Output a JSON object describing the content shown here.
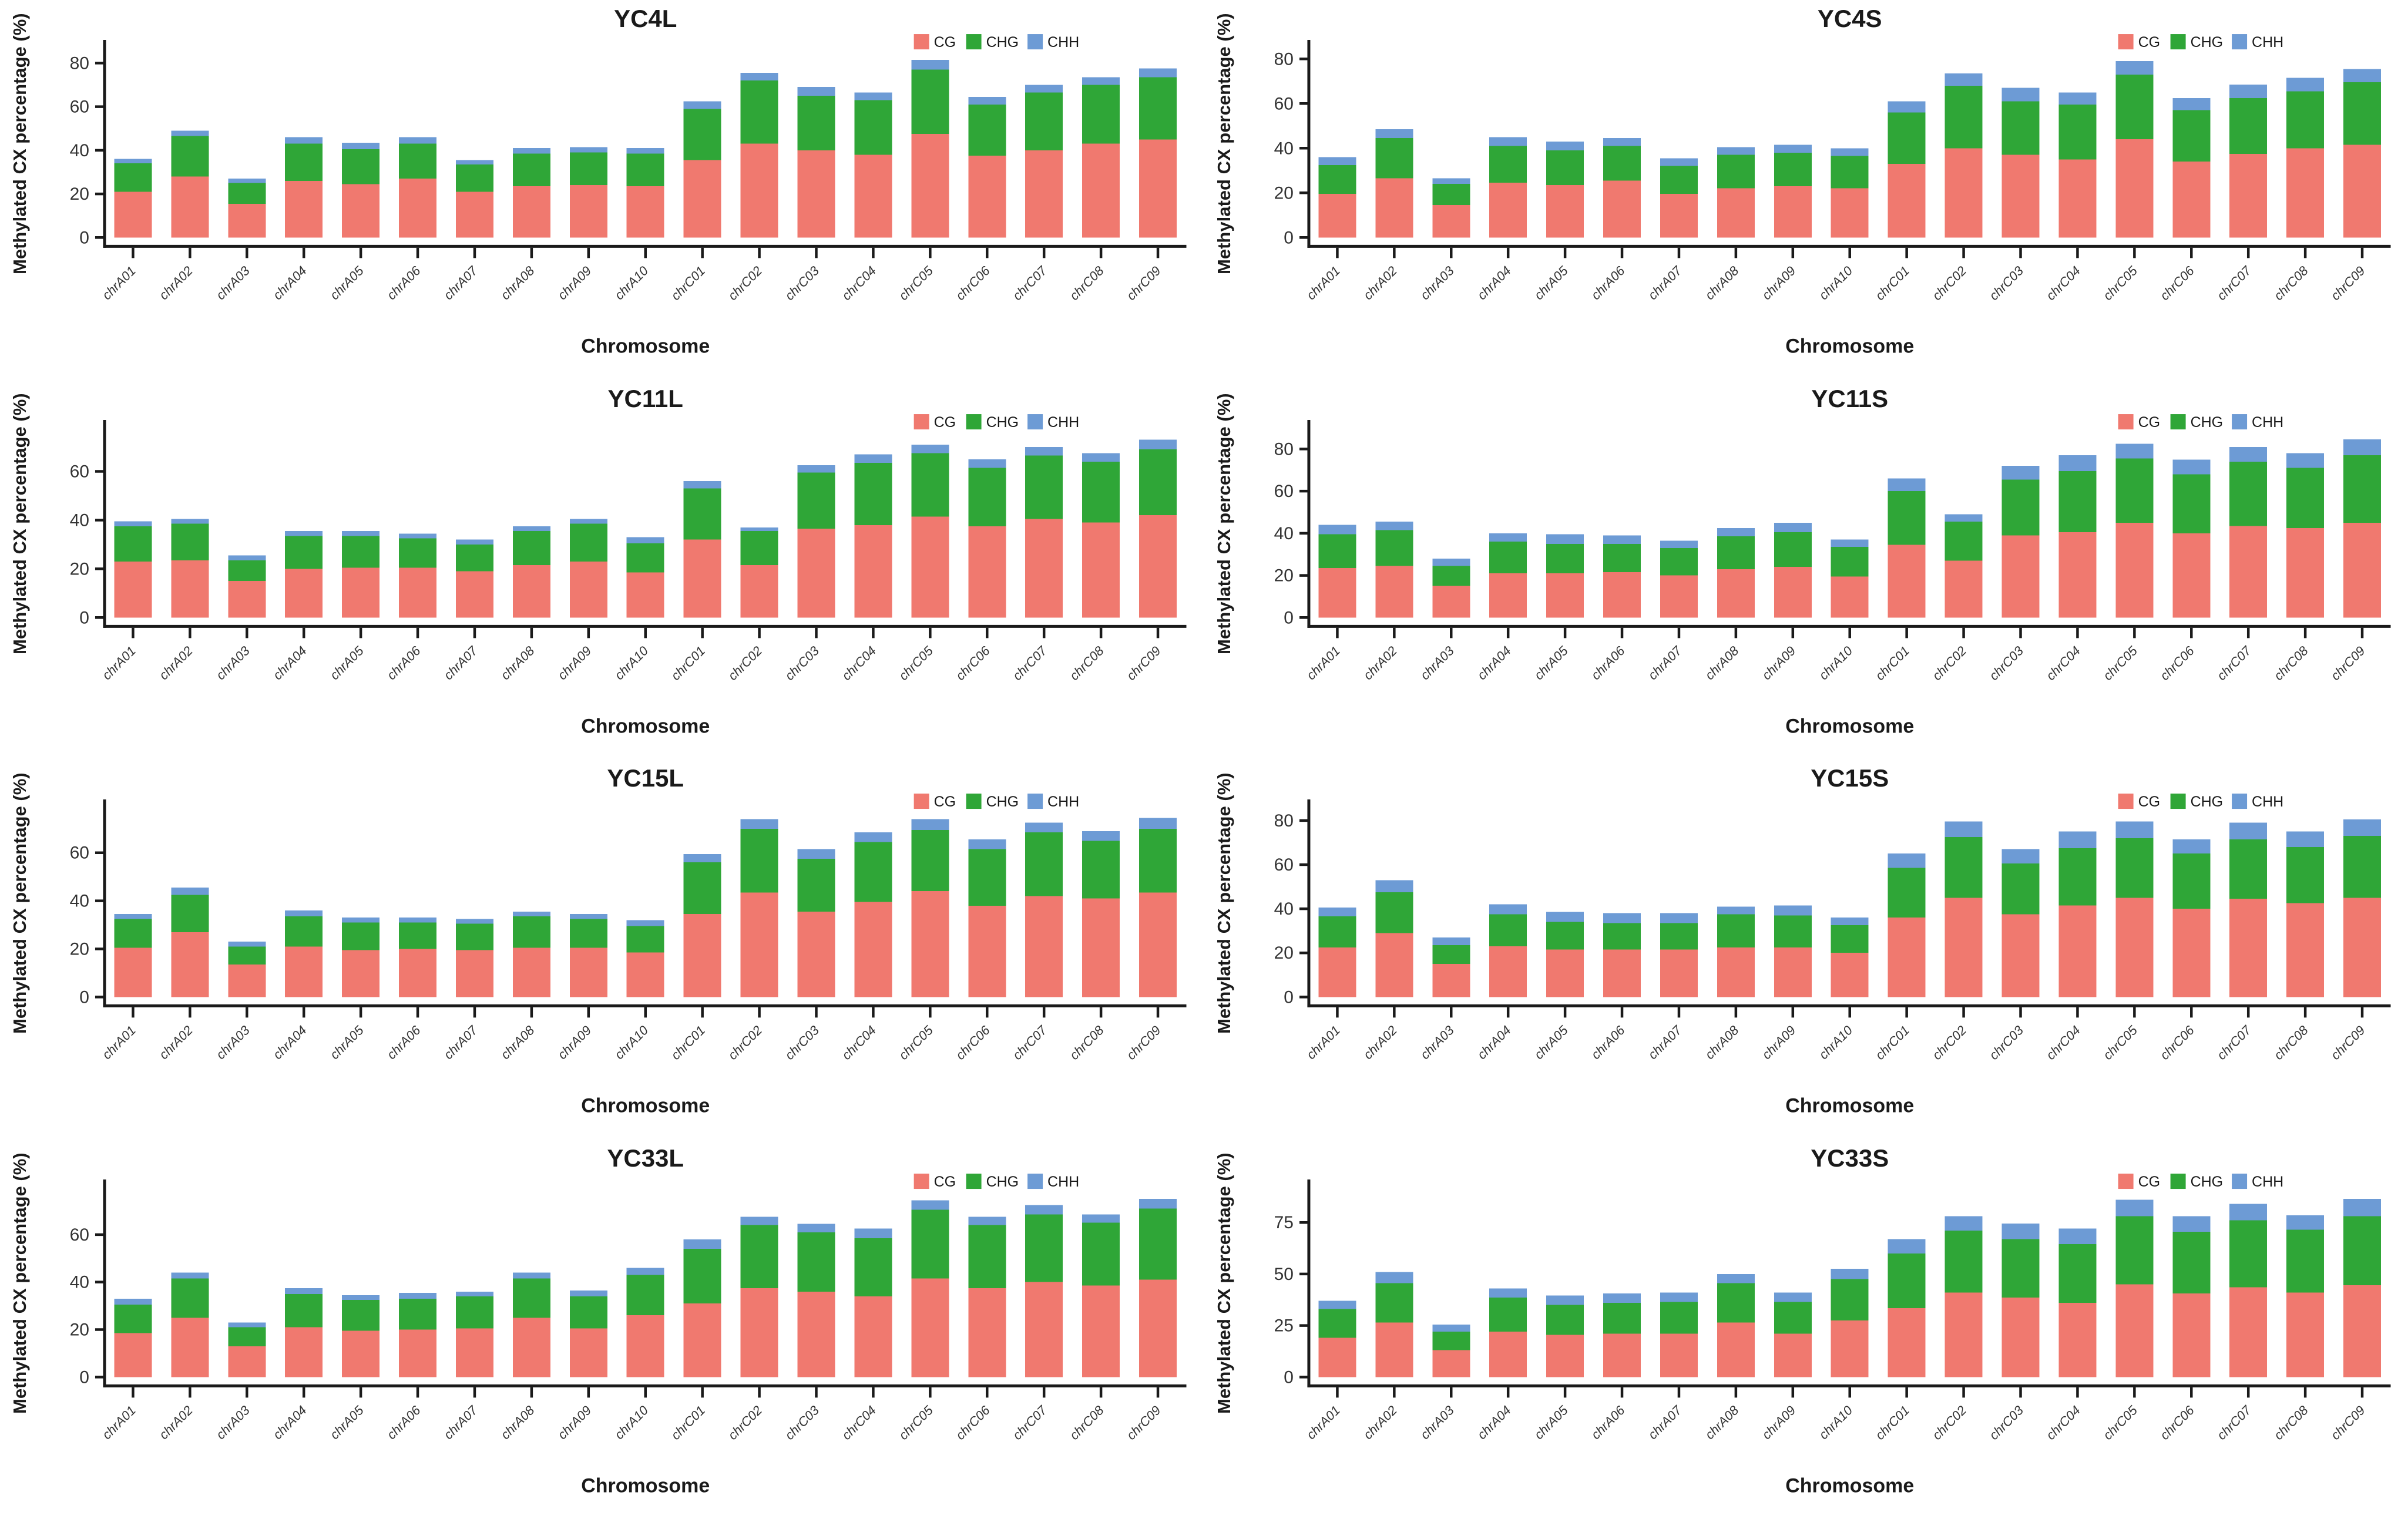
{
  "figure": {
    "background": "#FFFFFF",
    "text_color": "#1a1a1a",
    "tick_label_color": "#333333",
    "accent_colors": {
      "cg": "#F0796F",
      "chg": "#2FA637",
      "chh": "#6D9BD5"
    },
    "legend_labels": [
      "CG",
      "CHG",
      "CHH"
    ]
  },
  "chart_data": [
    {
      "type": "bar",
      "stacked": true,
      "title": "YC4L",
      "xlabel": "Chromosome",
      "ylabel": "Methylated CX percentage (%)",
      "legend_position": "top-right",
      "grid": false,
      "y_ticks": [
        0,
        20,
        40,
        60,
        80
      ],
      "ylim": [
        0,
        86
      ],
      "categories": [
        "chrA01",
        "chrA02",
        "chrA03",
        "chrA04",
        "chrA05",
        "chrA06",
        "chrA07",
        "chrA08",
        "chrA09",
        "chrA10",
        "chrC01",
        "chrC02",
        "chrC03",
        "chrC04",
        "chrC05",
        "chrC06",
        "chrC07",
        "chrC08",
        "chrC09"
      ],
      "series": [
        {
          "name": "CG",
          "color": "#F0796F",
          "values": [
            21,
            28,
            15.5,
            26,
            24.5,
            27,
            21,
            23.5,
            24,
            23.5,
            35.5,
            43,
            40,
            38,
            47.5,
            37.5,
            40,
            43,
            45
          ]
        },
        {
          "name": "CHG",
          "color": "#2FA637",
          "values": [
            13,
            18.5,
            9.5,
            17,
            16,
            16,
            12.5,
            15,
            15,
            15,
            23.5,
            29,
            25,
            25,
            29.5,
            23.5,
            26.5,
            27,
            28.5
          ]
        },
        {
          "name": "CHH",
          "color": "#6D9BD5",
          "values": [
            2,
            2.5,
            2,
            3,
            3,
            3,
            2,
            2.5,
            2.5,
            2.5,
            3.5,
            3.5,
            4,
            3.5,
            4.5,
            3.5,
            3.5,
            3.5,
            4
          ]
        }
      ]
    },
    {
      "type": "bar",
      "stacked": true,
      "title": "YC4S",
      "xlabel": "Chromosome",
      "ylabel": "Methylated CX percentage (%)",
      "legend_position": "top-right",
      "grid": false,
      "y_ticks": [
        0,
        20,
        40,
        60,
        80
      ],
      "ylim": [
        0,
        84
      ],
      "categories": [
        "chrA01",
        "chrA02",
        "chrA03",
        "chrA04",
        "chrA05",
        "chrA06",
        "chrA07",
        "chrA08",
        "chrA09",
        "chrA10",
        "chrC01",
        "chrC02",
        "chrC03",
        "chrC04",
        "chrC05",
        "chrC06",
        "chrC07",
        "chrC08",
        "chrC09"
      ],
      "series": [
        {
          "name": "CG",
          "color": "#F0796F",
          "values": [
            19.5,
            26.5,
            14.5,
            24.5,
            23.5,
            25.5,
            19.5,
            22,
            23,
            22,
            33,
            40,
            37,
            35,
            44,
            34,
            37.5,
            40,
            41.5
          ]
        },
        {
          "name": "CHG",
          "color": "#2FA637",
          "values": [
            13,
            18,
            9.5,
            16.5,
            15.5,
            15.5,
            12.5,
            15,
            15,
            14.5,
            23,
            28,
            24,
            24.5,
            29,
            23,
            25,
            25.5,
            28
          ]
        },
        {
          "name": "CHH",
          "color": "#6D9BD5",
          "values": [
            3.5,
            4,
            2.5,
            4,
            4,
            3.5,
            3.5,
            3.5,
            3.5,
            3.5,
            5,
            5.5,
            6,
            5.5,
            6,
            5.5,
            6,
            6,
            6
          ]
        }
      ]
    },
    {
      "type": "bar",
      "stacked": true,
      "title": "YC11L",
      "xlabel": "Chromosome",
      "ylabel": "Methylated CX percentage (%)",
      "legend_position": "top-right",
      "grid": false,
      "y_ticks": [
        0,
        20,
        40,
        60
      ],
      "ylim": [
        0,
        77
      ],
      "categories": [
        "chrA01",
        "chrA02",
        "chrA03",
        "chrA04",
        "chrA05",
        "chrA06",
        "chrA07",
        "chrA08",
        "chrA09",
        "chrA10",
        "chrC01",
        "chrC02",
        "chrC03",
        "chrC04",
        "chrC05",
        "chrC06",
        "chrC07",
        "chrC08",
        "chrC09"
      ],
      "series": [
        {
          "name": "CG",
          "color": "#F0796F",
          "values": [
            23,
            23.5,
            15,
            20,
            20.5,
            20.5,
            19,
            21.5,
            23,
            18.5,
            32,
            21.5,
            36.5,
            38,
            41.5,
            37.5,
            40.5,
            39,
            42
          ]
        },
        {
          "name": "CHG",
          "color": "#2FA637",
          "values": [
            14.5,
            15,
            8.5,
            13.5,
            13,
            12,
            11,
            14,
            15.5,
            12,
            21,
            14,
            23,
            25.5,
            26,
            24,
            26,
            25,
            27
          ]
        },
        {
          "name": "CHH",
          "color": "#6D9BD5",
          "values": [
            2,
            2,
            2,
            2,
            2,
            2,
            2,
            2,
            2,
            2.5,
            3,
            1.5,
            3,
            3.5,
            3.5,
            3.5,
            3.5,
            3.5,
            4
          ]
        }
      ]
    },
    {
      "type": "bar",
      "stacked": true,
      "title": "YC11S",
      "xlabel": "Chromosome",
      "ylabel": "Methylated CX percentage (%)",
      "legend_position": "top-right",
      "grid": false,
      "y_ticks": [
        0,
        20,
        40,
        60,
        80
      ],
      "ylim": [
        0,
        89
      ],
      "categories": [
        "chrA01",
        "chrA02",
        "chrA03",
        "chrA04",
        "chrA05",
        "chrA06",
        "chrA07",
        "chrA08",
        "chrA09",
        "chrA10",
        "chrC01",
        "chrC02",
        "chrC03",
        "chrC04",
        "chrC05",
        "chrC06",
        "chrC07",
        "chrC08",
        "chrC09"
      ],
      "series": [
        {
          "name": "CG",
          "color": "#F0796F",
          "values": [
            23.5,
            24.5,
            15,
            21,
            21,
            21.5,
            20,
            23,
            24,
            19.5,
            34.5,
            27,
            39,
            40.5,
            45,
            40,
            43.5,
            42.5,
            45
          ]
        },
        {
          "name": "CHG",
          "color": "#2FA637",
          "values": [
            16,
            17,
            9.5,
            15,
            14,
            13.5,
            13,
            15.5,
            16.5,
            14,
            25.5,
            18.5,
            26.5,
            29,
            30.5,
            28,
            30.5,
            28.5,
            32
          ]
        },
        {
          "name": "CHH",
          "color": "#6D9BD5",
          "values": [
            4.5,
            4,
            3.5,
            4,
            4.5,
            4,
            3.5,
            4,
            4.5,
            3.5,
            6,
            3.5,
            6.5,
            7.5,
            7,
            7,
            7,
            7,
            7.5
          ]
        }
      ]
    },
    {
      "type": "bar",
      "stacked": true,
      "title": "YC15L",
      "xlabel": "Chromosome",
      "ylabel": "Methylated CX percentage (%)",
      "legend_position": "top-right",
      "grid": false,
      "y_ticks": [
        0,
        20,
        40,
        60
      ],
      "ylim": [
        0,
        78
      ],
      "categories": [
        "chrA01",
        "chrA02",
        "chrA03",
        "chrA04",
        "chrA05",
        "chrA06",
        "chrA07",
        "chrA08",
        "chrA09",
        "chrA10",
        "chrC01",
        "chrC02",
        "chrC03",
        "chrC04",
        "chrC05",
        "chrC06",
        "chrC07",
        "chrC08",
        "chrC09"
      ],
      "series": [
        {
          "name": "CG",
          "color": "#F0796F",
          "values": [
            20.5,
            27,
            13.5,
            21,
            19.5,
            20,
            19.5,
            20.5,
            20.5,
            18.5,
            34.5,
            43.5,
            35.5,
            39.5,
            44,
            38,
            42,
            41,
            43.5
          ]
        },
        {
          "name": "CHG",
          "color": "#2FA637",
          "values": [
            12,
            15.5,
            7.5,
            12.5,
            11.5,
            11,
            11,
            13,
            12,
            11,
            21.5,
            26.5,
            22,
            25,
            25.5,
            23.5,
            26.5,
            24,
            26.5
          ]
        },
        {
          "name": "CHH",
          "color": "#6D9BD5",
          "values": [
            2,
            3,
            2,
            2.5,
            2,
            2,
            2,
            2,
            2,
            2.5,
            3.5,
            4,
            4,
            4,
            4.5,
            4,
            4,
            4,
            4.5
          ]
        }
      ]
    },
    {
      "type": "bar",
      "stacked": true,
      "title": "YC15S",
      "xlabel": "Chromosome",
      "ylabel": "Methylated CX percentage (%)",
      "legend_position": "top-right",
      "grid": false,
      "y_ticks": [
        0,
        20,
        40,
        60,
        80
      ],
      "ylim": [
        0,
        85
      ],
      "categories": [
        "chrA01",
        "chrA02",
        "chrA03",
        "chrA04",
        "chrA05",
        "chrA06",
        "chrA07",
        "chrA08",
        "chrA09",
        "chrA10",
        "chrC01",
        "chrC02",
        "chrC03",
        "chrC04",
        "chrC05",
        "chrC06",
        "chrC07",
        "chrC08",
        "chrC09"
      ],
      "series": [
        {
          "name": "CG",
          "color": "#F0796F",
          "values": [
            22.5,
            29,
            15,
            23,
            21.5,
            21.5,
            21.5,
            22.5,
            22.5,
            20,
            36,
            45,
            37.5,
            41.5,
            45,
            40,
            44.5,
            42.5,
            45
          ]
        },
        {
          "name": "CHG",
          "color": "#2FA637",
          "values": [
            14,
            18.5,
            8.5,
            14.5,
            12.5,
            12,
            12,
            15,
            14.5,
            12.5,
            22.5,
            27.5,
            23,
            26,
            27,
            25,
            27,
            25.5,
            28
          ]
        },
        {
          "name": "CHH",
          "color": "#6D9BD5",
          "values": [
            4,
            5.5,
            3.5,
            4.5,
            4.5,
            4.5,
            4.5,
            3.5,
            4.5,
            3.5,
            6.5,
            7,
            6.5,
            7.5,
            7.5,
            6.5,
            7.5,
            7,
            7.5
          ]
        }
      ]
    },
    {
      "type": "bar",
      "stacked": true,
      "title": "YC33L",
      "xlabel": "Chromosome",
      "ylabel": "Methylated CX percentage (%)",
      "legend_position": "top-right",
      "grid": false,
      "y_ticks": [
        0,
        20,
        40,
        60
      ],
      "ylim": [
        0,
        79
      ],
      "categories": [
        "chrA01",
        "chrA02",
        "chrA03",
        "chrA04",
        "chrA05",
        "chrA06",
        "chrA07",
        "chrA08",
        "chrA09",
        "chrA10",
        "chrC01",
        "chrC02",
        "chrC03",
        "chrC04",
        "chrC05",
        "chrC06",
        "chrC07",
        "chrC08",
        "chrC09"
      ],
      "series": [
        {
          "name": "CG",
          "color": "#F0796F",
          "values": [
            18.5,
            25,
            13,
            21,
            19.5,
            20,
            20.5,
            25,
            20.5,
            26,
            31,
            37.5,
            36,
            34,
            41.5,
            37.5,
            40,
            38.5,
            41
          ]
        },
        {
          "name": "CHG",
          "color": "#2FA637",
          "values": [
            12,
            16.5,
            8,
            14,
            13,
            13,
            13.5,
            16.5,
            13.5,
            17,
            23,
            26.5,
            25,
            24.5,
            29,
            26.5,
            28.5,
            26.5,
            30
          ]
        },
        {
          "name": "CHH",
          "color": "#6D9BD5",
          "values": [
            2.5,
            2.5,
            2,
            2.5,
            2,
            2.5,
            2,
            2.5,
            2.5,
            3,
            4,
            3.5,
            3.5,
            4,
            4,
            3.5,
            4,
            3.5,
            4
          ]
        }
      ]
    },
    {
      "type": "bar",
      "stacked": true,
      "title": "YC33S",
      "xlabel": "Chromosome",
      "ylabel": "Methylated CX percentage (%)",
      "legend_position": "top-right",
      "grid": false,
      "y_ticks": [
        0,
        25,
        50,
        75
      ],
      "ylim": [
        0,
        91
      ],
      "categories": [
        "chrA01",
        "chrA02",
        "chrA03",
        "chrA04",
        "chrA05",
        "chrA06",
        "chrA07",
        "chrA08",
        "chrA09",
        "chrA10",
        "chrC01",
        "chrC02",
        "chrC03",
        "chrC04",
        "chrC05",
        "chrC06",
        "chrC07",
        "chrC08",
        "chrC09"
      ],
      "series": [
        {
          "name": "CG",
          "color": "#F0796F",
          "values": [
            19,
            26.5,
            13,
            22,
            20.5,
            21,
            21,
            26.5,
            21,
            27.5,
            33.5,
            41,
            38.5,
            36,
            45,
            40.5,
            43.5,
            41,
            44.5
          ]
        },
        {
          "name": "CHG",
          "color": "#2FA637",
          "values": [
            14,
            19,
            9,
            16.5,
            14.5,
            15,
            15.5,
            19,
            15.5,
            20,
            26.5,
            30,
            28.5,
            28.5,
            33,
            30,
            32.5,
            30.5,
            33.5
          ]
        },
        {
          "name": "CHH",
          "color": "#6D9BD5",
          "values": [
            4,
            5.5,
            3.5,
            4.5,
            4.5,
            4.5,
            4.5,
            4.5,
            4.5,
            5,
            7,
            7,
            7.5,
            7.5,
            8,
            7.5,
            8,
            7,
            8.5
          ]
        }
      ]
    }
  ]
}
